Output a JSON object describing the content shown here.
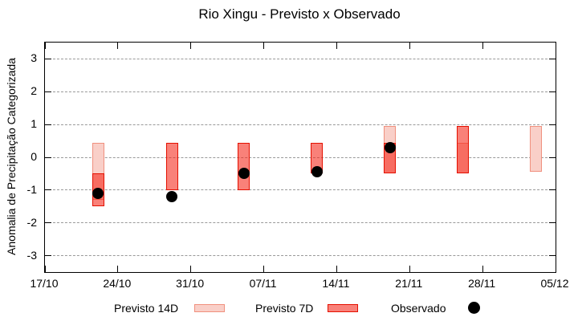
{
  "title": "Rio Xingu - Previsto x Observado",
  "y_axis": {
    "label": "Anomalia de Precipitação Categorizada"
  },
  "legend": {
    "items": [
      {
        "label": "Previsto 14D"
      },
      {
        "label": "Previsto 7D"
      },
      {
        "label": "Observado"
      }
    ]
  },
  "colors": {
    "previsto_14d_fill": "#f9cfc8",
    "previsto_14d_border": "#f0907e",
    "previsto_7d_fill": "rgba(244,38,24,0.58)",
    "previsto_7d_border": "#e41000",
    "observado": "#000000",
    "grid": "#999999"
  },
  "chart_data": {
    "type": "bar",
    "title": "Rio Xingu - Previsto x Observado",
    "xlabel": "",
    "ylabel": "Anomalia de Precipitação Categorizada",
    "ylim": [
      -3.5,
      3.5
    ],
    "y_ticks": [
      3,
      2,
      1,
      0,
      -1,
      -2,
      -3
    ],
    "x_tick_labels": [
      "17/10",
      "24/10",
      "31/10",
      "07/11",
      "14/11",
      "21/11",
      "28/11",
      "05/12"
    ],
    "x_tick_days": [
      0,
      7,
      14,
      21,
      28,
      35,
      42,
      49
    ],
    "x_range_days": [
      0,
      49
    ],
    "grid": "horizontal-dashed",
    "legend_position": "bottom",
    "series_names": [
      "Previsto 14D",
      "Previsto 7D",
      "Observado"
    ],
    "bars": [
      {
        "day": 5.1,
        "previsto_14d": [
          0.45,
          -1.3
        ],
        "previsto_7d": [
          -0.5,
          -1.5
        ],
        "observado": -1.1
      },
      {
        "day": 12.2,
        "previsto_14d": null,
        "previsto_7d": [
          0.45,
          -1.0
        ],
        "observado": -1.2
      },
      {
        "day": 19.1,
        "previsto_14d": null,
        "previsto_7d": [
          0.45,
          -1.0
        ],
        "observado": -0.5
      },
      {
        "day": 26.1,
        "previsto_14d": null,
        "previsto_7d": [
          0.45,
          -0.5
        ],
        "observado": -0.45
      },
      {
        "day": 33.1,
        "previsto_14d": [
          0.95,
          -0.5
        ],
        "previsto_7d": [
          0.45,
          -0.5
        ],
        "observado": 0.3
      },
      {
        "day": 40.1,
        "previsto_14d": [
          0.45,
          -0.5
        ],
        "previsto_7d": [
          0.95,
          -0.5
        ],
        "observado": null
      },
      {
        "day": 47.1,
        "previsto_14d": [
          0.95,
          -0.45
        ],
        "previsto_7d": null,
        "observado": null
      }
    ]
  }
}
